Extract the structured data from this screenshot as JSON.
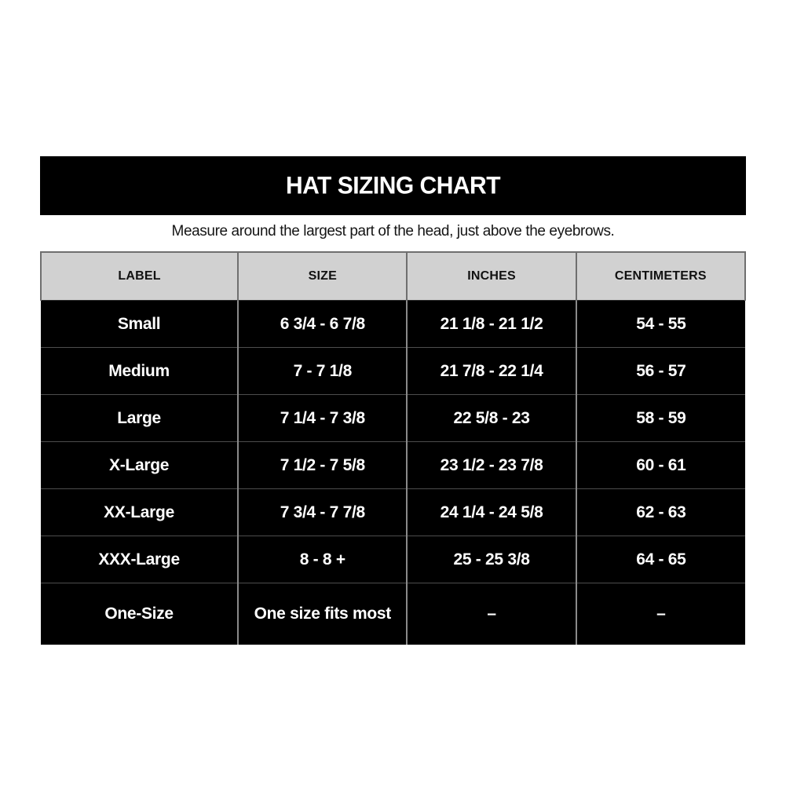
{
  "page": {
    "background": "#ffffff"
  },
  "title_bar": {
    "text": "HAT SIZING CHART",
    "bg": "#000000",
    "fg": "#ffffff"
  },
  "subtitle": "Measure around the largest part of the head, just above the eyebrows.",
  "chart_data": {
    "type": "table",
    "title": "HAT SIZING CHART",
    "columns": [
      "LABEL",
      "SIZE",
      "INCHES",
      "CENTIMETERS"
    ],
    "rows": [
      [
        "Small",
        "6 3/4 - 6 7/8",
        "21 1/8 - 21 1/2",
        "54 - 55"
      ],
      [
        "Medium",
        "7 - 7 1/8",
        "21 7/8 - 22 1/4",
        "56 - 57"
      ],
      [
        "Large",
        "7 1/4 - 7 3/8",
        "22 5/8 - 23",
        "58 - 59"
      ],
      [
        "X-Large",
        "7 1/2 - 7 5/8",
        "23 1/2 - 23 7/8",
        "60 - 61"
      ],
      [
        "XX-Large",
        "7 3/4 - 7 7/8",
        "24 1/4 - 24 5/8",
        "62 - 63"
      ],
      [
        "XXX-Large",
        "8 - 8 +",
        "25 - 25 3/8",
        "64 - 65"
      ],
      [
        "One-Size",
        "One size fits most",
        "–",
        "–"
      ]
    ],
    "layout_hints": {
      "header_bg": "#d1d1d1",
      "header_fg": "#111111",
      "row_bg": "#000000",
      "row_fg": "#ffffff",
      "grid": "on"
    }
  }
}
